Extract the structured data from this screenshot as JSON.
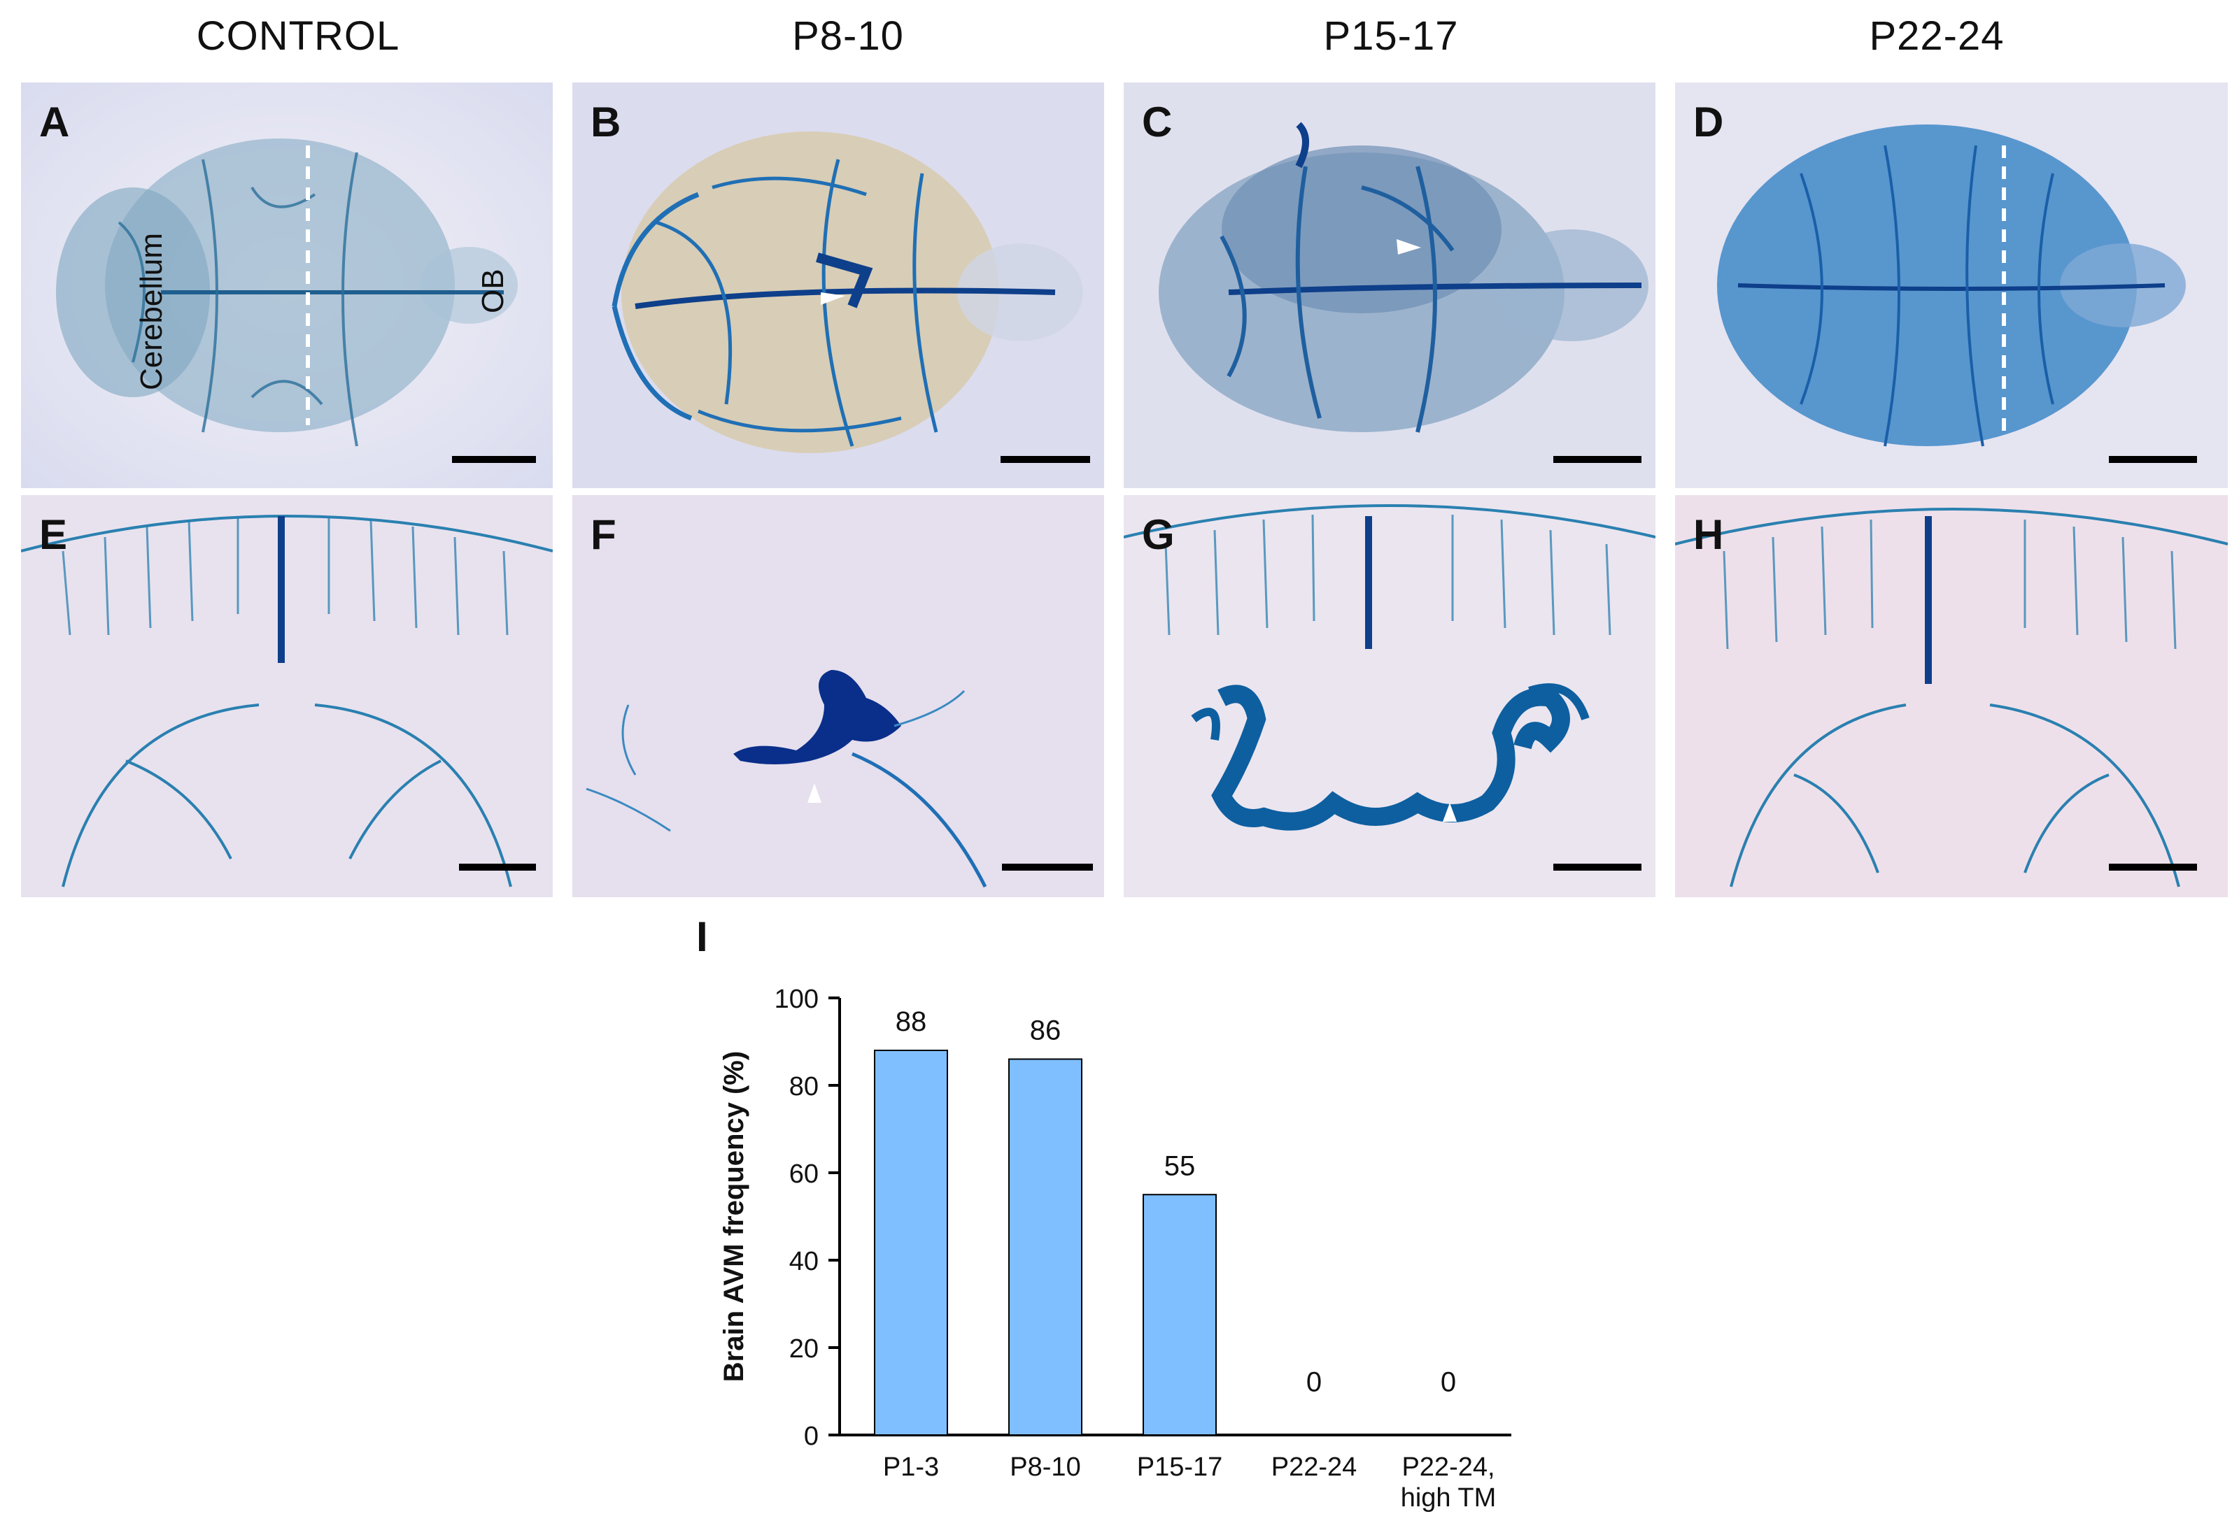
{
  "columns": [
    "CONTROL",
    "P8-10",
    "P15-17",
    "P22-24"
  ],
  "panels_top": [
    {
      "letter": "A",
      "labels": [
        "Cerebellum",
        "OB"
      ]
    },
    {
      "letter": "B"
    },
    {
      "letter": "C"
    },
    {
      "letter": "D"
    }
  ],
  "panels_bottom": [
    {
      "letter": "E"
    },
    {
      "letter": "F"
    },
    {
      "letter": "G"
    },
    {
      "letter": "H"
    }
  ],
  "colors": {
    "stain": "#1f6fb5",
    "stain_dark": "#0e3f8a",
    "bar_fill": "#7fbfff"
  },
  "chart_data": {
    "panel": "I",
    "type": "bar",
    "categories": [
      "P1-3",
      "P8-10",
      "P15-17",
      "P22-24",
      "P22-24,\nhigh TM"
    ],
    "values": [
      88,
      86,
      55,
      0,
      0
    ],
    "data_labels": [
      "88",
      "86",
      "55",
      "0",
      "0"
    ],
    "ylabel": "Brain AVM  frequency (%)",
    "ylim": [
      0,
      100
    ],
    "yticks": [
      0,
      20,
      40,
      60,
      80,
      100
    ],
    "grid": false,
    "legend": "none"
  }
}
